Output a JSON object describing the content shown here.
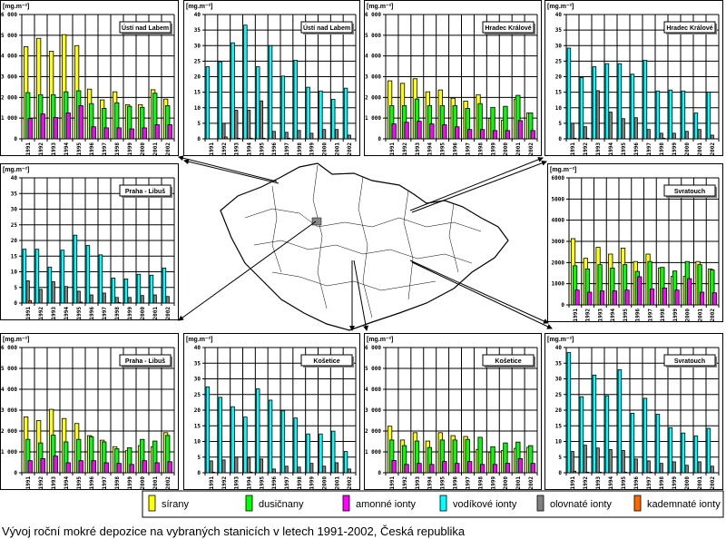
{
  "caption": "Vývoj roční mokré depozice na vybraných stanicích  v letech 1991-2002, Česká republika",
  "legend": [
    {
      "label": "sírany",
      "color": "#ffff00"
    },
    {
      "label": "dusičnany",
      "color": "#00ff00"
    },
    {
      "label": "amonné ionty",
      "color": "#ff00ff"
    },
    {
      "label": "vodíkové ionty",
      "color": "#00ffff"
    },
    {
      "label": "olovnaté ionty",
      "color": "#808080"
    },
    {
      "label": "kademnaté ionty",
      "color": "#ff6600"
    }
  ],
  "chart_data": [
    {
      "type": "bar",
      "title": "Ústí nad Labem",
      "ylabel": "[mg.m⁻²]",
      "group": "major",
      "ylim": [
        0,
        6000
      ],
      "yticks": [
        "0",
        "1 000",
        "2 000",
        "3 000",
        "4 000",
        "5 000",
        "6 000"
      ],
      "categories": [
        "1991",
        "1992",
        "1993",
        "1994",
        "1995",
        "1996",
        "1997",
        "1998",
        "1999",
        "2000",
        "2001",
        "2002"
      ],
      "series": [
        {
          "name": "sírany",
          "values": [
            4450,
            4850,
            4230,
            5030,
            4500,
            2400,
            1880,
            2270,
            1650,
            1650,
            2370,
            1920
          ]
        },
        {
          "name": "dusičnany",
          "values": [
            2230,
            2130,
            2130,
            2270,
            2320,
            1700,
            1470,
            1740,
            1570,
            1520,
            2200,
            1600
          ]
        },
        {
          "name": "amonné ionty",
          "values": [
            980,
            1200,
            1030,
            1250,
            1600,
            580,
            530,
            530,
            480,
            530,
            680,
            680
          ]
        }
      ]
    },
    {
      "type": "bar",
      "title": "Ústí nad Labem",
      "ylabel": "[mg.m⁻²]",
      "group": "trace",
      "ylim": [
        0,
        40
      ],
      "yticks": [
        "0",
        "5",
        "10",
        "15",
        "20",
        "25",
        "30",
        "35",
        "40"
      ],
      "categories": [
        "1991",
        "1992",
        "1993",
        "1994",
        "1995",
        "1996",
        "1997",
        "1998",
        "1999",
        "2000",
        "2001",
        "2002"
      ],
      "series": [
        {
          "name": "vodíkové ionty",
          "values": [
            23.2,
            24.8,
            30.9,
            36.6,
            23.2,
            30,
            20.2,
            25.3,
            16.6,
            15.4,
            12.7,
            16.3
          ]
        },
        {
          "name": "olovnaté ionty",
          "values": [
            0,
            5,
            9.2,
            9.2,
            12.2,
            2.4,
            2.1,
            2.7,
            1.8,
            3,
            3,
            1.2
          ]
        },
        {
          "name": "kademnaté ionty",
          "values": [
            0,
            0.6,
            0.2,
            0.2,
            0.2,
            0,
            0.2,
            0,
            0,
            0,
            0,
            0
          ]
        }
      ]
    },
    {
      "type": "bar",
      "title": "Hradec Králové",
      "ylabel": "[mg.m⁻²]",
      "group": "major",
      "ylim": [
        0,
        6000
      ],
      "yticks": [
        "0",
        "1 000",
        "2 000",
        "3 000",
        "4 000",
        "5 000",
        "6 000"
      ],
      "categories": [
        "1991",
        "1992",
        "1993",
        "1994",
        "1995",
        "1996",
        "1997",
        "1998",
        "1999",
        "2000",
        "2001",
        "2002"
      ],
      "series": [
        {
          "name": "sírany",
          "values": [
            2800,
            2680,
            2900,
            2270,
            2360,
            1960,
            1820,
            2130,
            980,
            900,
            1920,
            1250
          ]
        },
        {
          "name": "dusičnany",
          "values": [
            1600,
            1600,
            1920,
            1600,
            1600,
            1600,
            1470,
            1700,
            1520,
            1570,
            2100,
            1250
          ]
        },
        {
          "name": "amonné ionty",
          "values": [
            720,
            800,
            850,
            720,
            680,
            580,
            450,
            450,
            400,
            400,
            880,
            400
          ]
        }
      ]
    },
    {
      "type": "bar",
      "title": "Hradec Králové",
      "ylabel": "[mg.m⁻²]",
      "group": "trace",
      "ylim": [
        0,
        40
      ],
      "yticks": [
        "0",
        "5",
        "10",
        "15",
        "20",
        "25",
        "30",
        "35",
        "40"
      ],
      "categories": [
        "1991",
        "1992",
        "1993",
        "1994",
        "1995",
        "1996",
        "1997",
        "1998",
        "1999",
        "2000",
        "2001",
        "2002"
      ],
      "series": [
        {
          "name": "vodíkové ionty",
          "values": [
            29.2,
            19.7,
            23.2,
            24.2,
            24.2,
            20.8,
            25.3,
            15.4,
            15.7,
            15.4,
            8.3,
            15
          ]
        },
        {
          "name": "olovnaté ionty",
          "values": [
            5,
            3.9,
            15.5,
            8.6,
            6.5,
            6.8,
            3,
            1.8,
            1.8,
            2.4,
            3,
            1.2
          ]
        },
        {
          "name": "kademnaté ionty",
          "values": [
            0.2,
            0.2,
            0,
            0,
            0,
            0,
            0,
            0.2,
            0,
            0,
            0,
            0
          ]
        }
      ]
    },
    {
      "type": "bar",
      "title": "Praha - Libuš",
      "ylabel": "[mg.m⁻²]",
      "group": "trace",
      "ylim": [
        0,
        40
      ],
      "yticks": [
        "0",
        "5",
        "10",
        "15",
        "20",
        "25",
        "30",
        "35",
        "40"
      ],
      "categories": [
        "1991",
        "1992",
        "1993",
        "1994",
        "1995",
        "1996",
        "1997",
        "1998",
        "1999",
        "2000",
        "2001",
        "2002"
      ],
      "series": [
        {
          "name": "vodíkové ionty",
          "values": [
            17.2,
            17.2,
            11.5,
            16.9,
            21.7,
            18.4,
            15.4,
            8,
            7.7,
            9.2,
            8.9,
            11.2
          ]
        },
        {
          "name": "olovnaté ionty",
          "values": [
            7.1,
            4.4,
            6.8,
            5.3,
            3.8,
            2.6,
            3.2,
            1.8,
            1.8,
            2.4,
            2.6,
            2.1
          ]
        },
        {
          "name": "kademnaté ionty",
          "values": [
            0.8,
            0,
            0,
            0,
            0.3,
            0,
            0,
            0.2,
            0,
            0,
            0,
            0
          ]
        }
      ]
    },
    {
      "type": "bar",
      "title": "Svratouch",
      "ylabel": "[mg.m⁻²]",
      "group": "major",
      "ylim": [
        0,
        6000
      ],
      "yticks": [
        "0",
        "1000",
        "2000",
        "3000",
        "4000",
        "5000",
        "6000"
      ],
      "categories": [
        "1991",
        "1992",
        "1993",
        "1994",
        "1995",
        "1996",
        "1997",
        "1998",
        "1999",
        "2000",
        "2001",
        "2002"
      ],
      "series": [
        {
          "name": "sírany",
          "values": [
            3130,
            2200,
            2720,
            2400,
            2680,
            2050,
            2400,
            1750,
            1350,
            1350,
            2050,
            1700
          ]
        },
        {
          "name": "dusičnany",
          "values": [
            1850,
            1700,
            1900,
            1740,
            1900,
            1580,
            2050,
            1770,
            1600,
            2050,
            1900,
            1650
          ]
        },
        {
          "name": "amonné ionty",
          "values": [
            700,
            600,
            660,
            660,
            700,
            1330,
            750,
            800,
            700,
            1240,
            600,
            570
          ]
        }
      ]
    },
    {
      "type": "bar",
      "title": "Praha - Libuš",
      "ylabel": "[mg.m⁻²]",
      "group": "major",
      "ylim": [
        0,
        6000
      ],
      "yticks": [
        "0",
        "1 000",
        "2 000",
        "3 000",
        "4 000",
        "5 000",
        "6 000"
      ],
      "categories": [
        "1991",
        "1992",
        "1993",
        "1994",
        "1995",
        "1996",
        "1997",
        "1998",
        "1999",
        "2000",
        "2001",
        "2002"
      ],
      "series": [
        {
          "name": "sírany",
          "values": [
            2680,
            2500,
            3040,
            2600,
            2360,
            1780,
            1560,
            1250,
            1060,
            1300,
            1250,
            1920
          ]
        },
        {
          "name": "dusičnany",
          "values": [
            1600,
            1430,
            1800,
            1480,
            1600,
            1730,
            1480,
            1150,
            1200,
            1600,
            1520,
            1790
          ]
        },
        {
          "name": "amonné ionty",
          "values": [
            580,
            680,
            800,
            480,
            580,
            580,
            480,
            450,
            400,
            580,
            480,
            530
          ]
        }
      ]
    },
    {
      "type": "bar",
      "title": "Košetice",
      "ylabel": "[mg.m⁻²]",
      "group": "trace",
      "ylim": [
        0,
        40
      ],
      "yticks": [
        "0",
        "5",
        "10",
        "15",
        "20",
        "25",
        "30",
        "35",
        "40"
      ],
      "categories": [
        "1991",
        "1992",
        "1993",
        "1994",
        "1995",
        "1996",
        "1997",
        "1998",
        "1999",
        "2000",
        "2001",
        "2002"
      ],
      "series": [
        {
          "name": "vodíkové ionty",
          "values": [
            27.4,
            24.1,
            21.1,
            17.8,
            26.8,
            23.2,
            19.8,
            17.5,
            12.4,
            12.4,
            13.3,
            6.8
          ]
        },
        {
          "name": "olovnaté ionty",
          "values": [
            3.8,
            4.1,
            5,
            4.7,
            4.4,
            1.2,
            2.1,
            1.8,
            3,
            2.1,
            3.2,
            1.2
          ]
        },
        {
          "name": "kademnaté ionty",
          "values": [
            0.2,
            0,
            0,
            0.2,
            0,
            0,
            0,
            0,
            0,
            0,
            0,
            0
          ]
        }
      ]
    },
    {
      "type": "bar",
      "title": "Košetice",
      "ylabel": "[mg.m⁻²]",
      "group": "major",
      "ylim": [
        0,
        6000
      ],
      "yticks": [
        "0",
        "1 000",
        "2 000",
        "3 000",
        "4 000",
        "5 000",
        "6 000"
      ],
      "categories": [
        "1991",
        "1992",
        "1993",
        "1994",
        "1995",
        "1996",
        "1997",
        "1998",
        "1999",
        "2000",
        "2001",
        "2002"
      ],
      "series": [
        {
          "name": "sírany",
          "values": [
            2230,
            1570,
            1920,
            1520,
            1920,
            1780,
            1740,
            1120,
            980,
            1070,
            1170,
            1220
          ]
        },
        {
          "name": "dusičnany",
          "values": [
            1570,
            1300,
            1520,
            1210,
            1570,
            1570,
            1600,
            1700,
            1250,
            1430,
            1470,
            1300
          ]
        },
        {
          "name": "amonné ionty",
          "values": [
            590,
            400,
            450,
            400,
            540,
            450,
            540,
            400,
            400,
            450,
            680,
            450
          ]
        }
      ]
    },
    {
      "type": "bar",
      "title": "Svratouch",
      "ylabel": "[mg.m⁻²]",
      "group": "trace",
      "ylim": [
        0,
        40
      ],
      "yticks": [
        "0",
        "5",
        "10",
        "15",
        "20",
        "25",
        "30",
        "35",
        "40"
      ],
      "categories": [
        "1991",
        "1992",
        "1993",
        "1994",
        "1995",
        "1996",
        "1997",
        "1998",
        "1999",
        "2000",
        "2001",
        "2002"
      ],
      "series": [
        {
          "name": "vodíkové ionty",
          "values": [
            38.4,
            24.3,
            31.2,
            24.6,
            32.9,
            19,
            23.8,
            18.7,
            14.4,
            12.7,
            11.8,
            14.2
          ]
        },
        {
          "name": "olovnaté ionty",
          "values": [
            6.8,
            8.8,
            7.9,
            7.4,
            7.1,
            4.4,
            3.8,
            3,
            3.5,
            2.4,
            3.5,
            2.1
          ]
        },
        {
          "name": "kademnaté ionty",
          "values": [
            0.5,
            0.2,
            0.2,
            0,
            0.2,
            0,
            0.2,
            0,
            0,
            0,
            0,
            0
          ]
        }
      ]
    }
  ]
}
